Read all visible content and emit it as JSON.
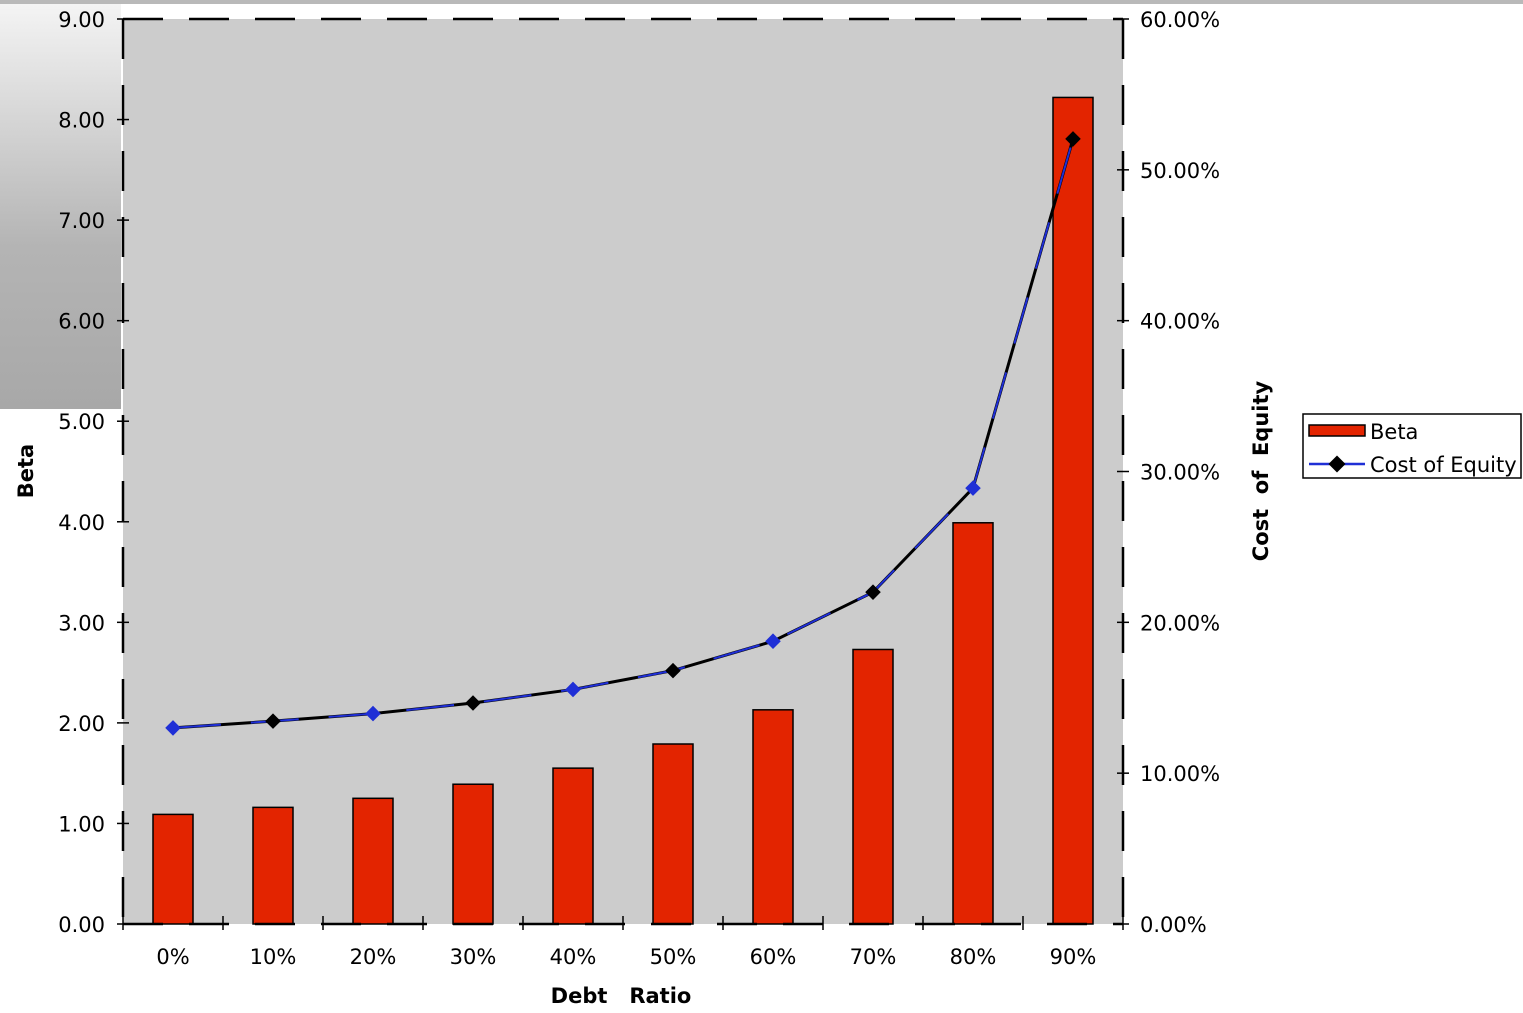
{
  "chart_data": {
    "type": "bar",
    "title": "",
    "xlabel": "Debt   Ratio",
    "ylabel": "Beta",
    "y2label": "Cost  of  Equity",
    "categories": [
      "0%",
      "10%",
      "20%",
      "30%",
      "40%",
      "50%",
      "60%",
      "70%",
      "80%",
      "90%"
    ],
    "ylim": [
      0,
      9
    ],
    "y_ticks": [
      "0.00",
      "1.00",
      "2.00",
      "3.00",
      "4.00",
      "5.00",
      "6.00",
      "7.00",
      "8.00",
      "9.00"
    ],
    "y2lim": [
      0,
      0.6
    ],
    "y2_ticks": [
      "0.00%",
      "10.00%",
      "20.00%",
      "30.00%",
      "40.00%",
      "50.00%",
      "60.00%"
    ],
    "grid": false,
    "legend_position": "right",
    "series": [
      {
        "name": "Beta",
        "type": "bar",
        "axis": "left",
        "color": "#e32400",
        "values": [
          1.09,
          1.16,
          1.25,
          1.39,
          1.55,
          1.79,
          2.13,
          2.73,
          3.99,
          8.22
        ]
      },
      {
        "name": "Cost of Equity",
        "type": "line",
        "axis": "right",
        "color": "#1f2fd6",
        "marker_color": "#000000",
        "values": [
          0.13,
          0.1345,
          0.1395,
          0.1465,
          0.1555,
          0.168,
          0.1875,
          0.22,
          0.289,
          0.5205
        ]
      }
    ],
    "plot_background": "#cccccc"
  }
}
